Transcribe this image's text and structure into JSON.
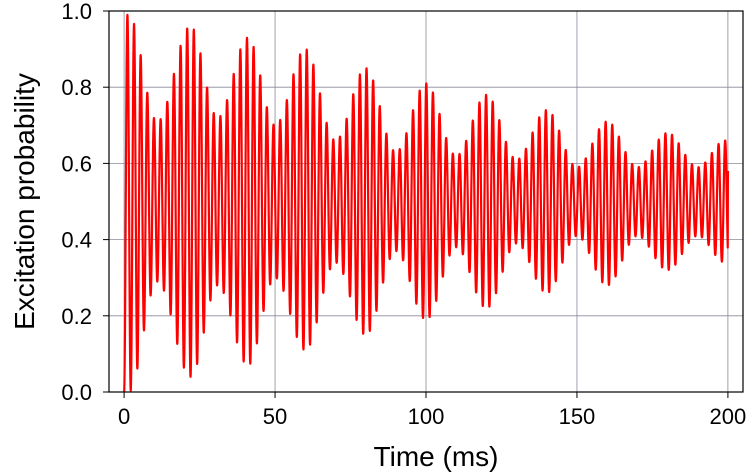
{
  "chart_data": {
    "type": "line",
    "title": "",
    "xlabel": "Time (ms)",
    "ylabel": "Excitation probability",
    "xlim": [
      -5,
      205
    ],
    "ylim": [
      0.0,
      1.0
    ],
    "xticks": [
      0,
      50,
      100,
      150,
      200
    ],
    "xtick_labels": [
      "0",
      "50",
      "100",
      "150",
      "200"
    ],
    "yticks": [
      0.0,
      0.2,
      0.4,
      0.6,
      0.8,
      1.0
    ],
    "ytick_labels": [
      "0.0",
      "0.2",
      "0.4",
      "0.6",
      "0.8",
      "1.0"
    ],
    "grid": true,
    "legend": "none",
    "series": [
      {
        "color": "#ff0000",
        "description": "Damped Rabi oscillation with beating envelope",
        "x_range": [
          0,
          200
        ],
        "carrier_period_ms": 2.2,
        "beat_period_ms": 19.7,
        "settle_level": 0.5,
        "envelope_peaks": [
          {
            "t": 1.5,
            "max": 0.99,
            "min": 0.0
          },
          {
            "t": 22,
            "max": 0.96,
            "min": 0.04
          },
          {
            "t": 41,
            "max": 0.93,
            "min": 0.07
          },
          {
            "t": 60,
            "max": 0.9,
            "min": 0.11
          },
          {
            "t": 80,
            "max": 0.85,
            "min": 0.15
          },
          {
            "t": 100,
            "max": 0.81,
            "min": 0.19
          },
          {
            "t": 120,
            "max": 0.78,
            "min": 0.22
          },
          {
            "t": 140,
            "max": 0.74,
            "min": 0.26
          },
          {
            "t": 160,
            "max": 0.71,
            "min": 0.28
          },
          {
            "t": 180,
            "max": 0.68,
            "min": 0.32
          },
          {
            "t": 199,
            "max": 0.66,
            "min": 0.34
          }
        ],
        "envelope_troughs": [
          {
            "t": 11,
            "max": 0.71,
            "min": 0.29
          },
          {
            "t": 31,
            "max": 0.72,
            "min": 0.28
          },
          {
            "t": 50,
            "max": 0.7,
            "min": 0.3
          },
          {
            "t": 70,
            "max": 0.66,
            "min": 0.34
          },
          {
            "t": 90,
            "max": 0.63,
            "min": 0.37
          },
          {
            "t": 110,
            "max": 0.62,
            "min": 0.38
          },
          {
            "t": 130,
            "max": 0.61,
            "min": 0.39
          },
          {
            "t": 150,
            "max": 0.59,
            "min": 0.41
          },
          {
            "t": 170,
            "max": 0.59,
            "min": 0.41
          },
          {
            "t": 190,
            "max": 0.59,
            "min": 0.41
          }
        ],
        "end_value": 0.58
      }
    ]
  }
}
